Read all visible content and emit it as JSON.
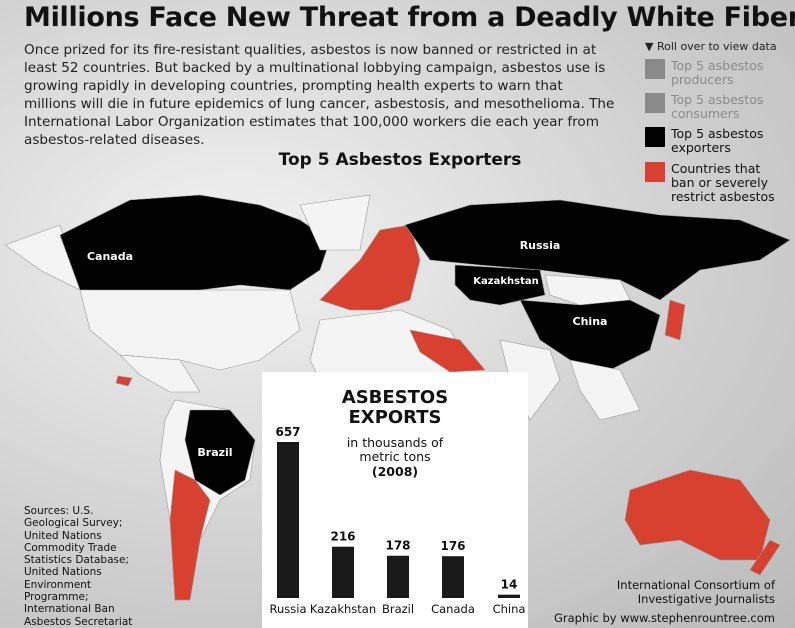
{
  "header": {
    "title": "Millions Face New Threat from a Deadly White Fiber",
    "intro": "Once prized for its fire-resistant qualities, asbestos is now banned or restricted in at least 52 countries. But backed by a multinational lobbying campaign, asbestos use is growing rapidly in developing countries, prompting health experts to warn that millions will die in future epidemics of lung cancer, asbestosis, and mesothelioma. The International Labor Organization estimates that 100,000 workers die each year from asbestos-related diseases."
  },
  "legend": {
    "hint": "▼ Roll over to view data",
    "items": [
      {
        "label": "Top 5 asbestos producers",
        "color": "#8a8a8a"
      },
      {
        "label": "Top 5 asbestos consumers",
        "color": "#8a8a8a"
      },
      {
        "label": "Top 5 asbestos exporters",
        "color": "#000000"
      },
      {
        "label": "Countries that ban or severely restrict asbestos",
        "color": "#d8402f"
      }
    ]
  },
  "map": {
    "title": "Top 5 Asbestos Exporters",
    "labels": [
      "Canada",
      "Russia",
      "Kazakhstan",
      "China",
      "Brazil"
    ]
  },
  "chart_data": {
    "type": "bar",
    "title": "ASBESTOS EXPORTS",
    "subtitle": "in thousands of metric tons",
    "note": "(2008)",
    "categories": [
      "Russia",
      "Kazakhstan",
      "Brazil",
      "Canada",
      "China"
    ],
    "values": [
      657,
      216,
      178,
      176,
      14
    ],
    "color": "#1a1a1a"
  },
  "footer": {
    "sources": "Sources: U.S. Geological Survey; United Nations Commodity Trade Statistics Database; United Nations Environment Programme; International Ban Asbestos Secretariat",
    "org": "International Consortium of Investigative Journalists",
    "credit": "Graphic by www.stephenrountree.com"
  }
}
